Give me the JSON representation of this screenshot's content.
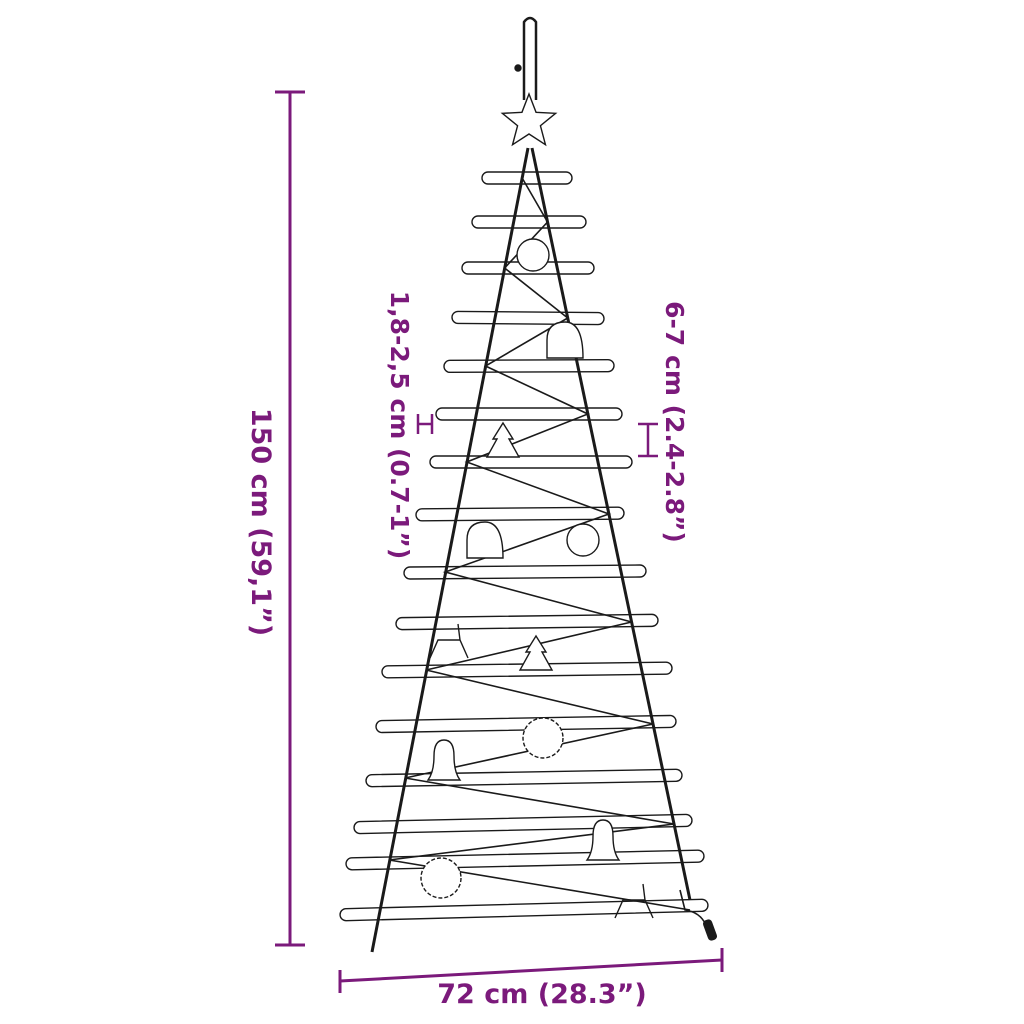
{
  "colors": {
    "dimension": "#7b1a7b",
    "drawing": "#1a1a1a"
  },
  "dimensions": {
    "height": "150 cm (59,1”)",
    "width": "72 cm (28.3”)",
    "rung_diameter": "1,8-2,5 cm (0.7-1”)",
    "rung_spacing": "6-7 cm (2.4-2.8”)"
  }
}
